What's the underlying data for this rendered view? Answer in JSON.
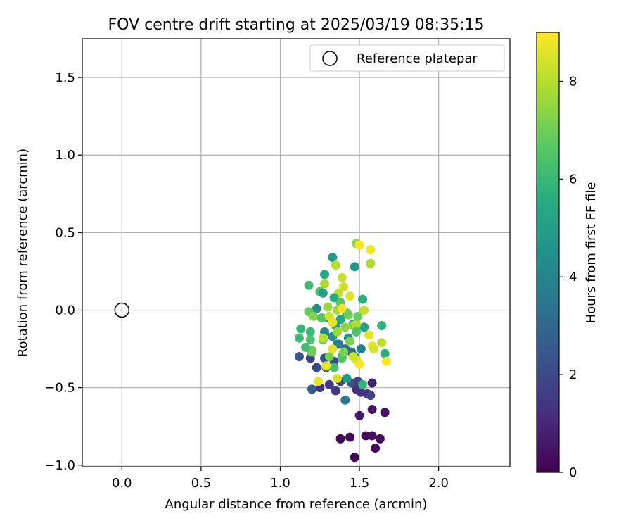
{
  "chart_data": {
    "type": "scatter",
    "title": "FOV centre drift starting at 2025/03/19 08:35:15",
    "xlabel": "Angular distance from reference (arcmin)",
    "ylabel": "Rotation from reference (arcmin)",
    "xlim": [
      -0.25,
      2.45
    ],
    "ylim": [
      -1.01,
      1.75
    ],
    "xticks": [
      0.0,
      0.5,
      1.0,
      1.5,
      2.0
    ],
    "xtick_labels": [
      "0.0",
      "0.5",
      "1.0",
      "1.5",
      "2.0"
    ],
    "yticks": [
      -1.0,
      -0.5,
      0.0,
      0.5,
      1.0,
      1.5
    ],
    "ytick_labels": [
      "−1.0",
      "−0.5",
      "0.0",
      "0.5",
      "1.0",
      "1.5"
    ],
    "grid": true,
    "legend": {
      "position": "top-right",
      "entries": [
        "Reference platepar"
      ]
    },
    "reference_point": {
      "x": 0.0,
      "y": 0.0,
      "marker": "open-circle"
    },
    "colorbar": {
      "label": "Hours from first FF file",
      "range": [
        0,
        9
      ],
      "ticks": [
        0,
        2,
        4,
        6,
        8
      ],
      "tick_labels": [
        "0",
        "2",
        "4",
        "6",
        "8"
      ],
      "colormap": "viridis"
    },
    "points": [
      {
        "x": 1.47,
        "y": -0.95,
        "h": 0.1
      },
      {
        "x": 1.38,
        "y": -0.83,
        "h": 0.2
      },
      {
        "x": 1.44,
        "y": -0.82,
        "h": 0.3
      },
      {
        "x": 1.54,
        "y": -0.81,
        "h": 0.2
      },
      {
        "x": 1.58,
        "y": -0.81,
        "h": 0.4
      },
      {
        "x": 1.63,
        "y": -0.83,
        "h": 0.3
      },
      {
        "x": 1.6,
        "y": -0.89,
        "h": 0.2
      },
      {
        "x": 1.5,
        "y": -0.68,
        "h": 0.6
      },
      {
        "x": 1.58,
        "y": -0.64,
        "h": 0.5
      },
      {
        "x": 1.66,
        "y": -0.66,
        "h": 0.4
      },
      {
        "x": 1.55,
        "y": -0.54,
        "h": 1.0
      },
      {
        "x": 1.58,
        "y": -0.47,
        "h": 0.8
      },
      {
        "x": 1.51,
        "y": -0.53,
        "h": 1.4
      },
      {
        "x": 1.48,
        "y": -0.51,
        "h": 1.1
      },
      {
        "x": 1.57,
        "y": -0.55,
        "h": 1.8
      },
      {
        "x": 1.35,
        "y": -0.52,
        "h": 1.5
      },
      {
        "x": 1.25,
        "y": -0.5,
        "h": 1.3
      },
      {
        "x": 1.31,
        "y": -0.48,
        "h": 1.6
      },
      {
        "x": 1.2,
        "y": -0.51,
        "h": 2.6
      },
      {
        "x": 1.38,
        "y": -0.46,
        "h": 1.9
      },
      {
        "x": 1.45,
        "y": -0.47,
        "h": 2.2
      },
      {
        "x": 1.49,
        "y": -0.46,
        "h": 1.7
      },
      {
        "x": 1.41,
        "y": -0.58,
        "h": 3.6
      },
      {
        "x": 1.42,
        "y": -0.44,
        "h": 4.8
      },
      {
        "x": 1.52,
        "y": -0.48,
        "h": 5.9
      },
      {
        "x": 1.24,
        "y": -0.46,
        "h": 8.7
      },
      {
        "x": 1.36,
        "y": -0.44,
        "h": 8.5
      },
      {
        "x": 1.19,
        "y": -0.31,
        "h": 1.7
      },
      {
        "x": 1.23,
        "y": -0.37,
        "h": 2.0
      },
      {
        "x": 1.28,
        "y": -0.31,
        "h": 2.3
      },
      {
        "x": 1.12,
        "y": -0.3,
        "h": 2.5
      },
      {
        "x": 1.34,
        "y": -0.33,
        "h": 2.1
      },
      {
        "x": 1.29,
        "y": -0.37,
        "h": 3.0
      },
      {
        "x": 1.41,
        "y": -0.25,
        "h": 3.1
      },
      {
        "x": 1.37,
        "y": -0.22,
        "h": 3.4
      },
      {
        "x": 1.45,
        "y": -0.27,
        "h": 3.3
      },
      {
        "x": 1.51,
        "y": -0.25,
        "h": 4.0
      },
      {
        "x": 1.39,
        "y": -0.3,
        "h": 4.2
      },
      {
        "x": 1.47,
        "y": -0.3,
        "h": 4.5
      },
      {
        "x": 1.28,
        "y": -0.14,
        "h": 4.1
      },
      {
        "x": 1.33,
        "y": -0.17,
        "h": 4.4
      },
      {
        "x": 1.36,
        "y": -0.22,
        "h": 3.8
      },
      {
        "x": 1.43,
        "y": -0.18,
        "h": 4.6
      },
      {
        "x": 1.46,
        "y": -0.09,
        "h": 4.9
      },
      {
        "x": 1.35,
        "y": -0.1,
        "h": 5.1
      },
      {
        "x": 1.3,
        "y": -0.05,
        "h": 5.4
      },
      {
        "x": 1.38,
        "y": -0.06,
        "h": 5.3
      },
      {
        "x": 1.42,
        "y": -0.02,
        "h": 5.6
      },
      {
        "x": 1.53,
        "y": -0.11,
        "h": 5.2
      },
      {
        "x": 1.64,
        "y": -0.1,
        "h": 5.8
      },
      {
        "x": 1.66,
        "y": -0.28,
        "h": 5.7
      },
      {
        "x": 1.13,
        "y": -0.12,
        "h": 5.9
      },
      {
        "x": 1.12,
        "y": -0.18,
        "h": 6.1
      },
      {
        "x": 1.19,
        "y": -0.14,
        "h": 6.0
      },
      {
        "x": 1.19,
        "y": -0.19,
        "h": 6.4
      },
      {
        "x": 1.2,
        "y": -0.26,
        "h": 6.7
      },
      {
        "x": 1.27,
        "y": -0.19,
        "h": 6.9
      },
      {
        "x": 1.31,
        "y": -0.3,
        "h": 7.1
      },
      {
        "x": 1.34,
        "y": -0.37,
        "h": 6.3
      },
      {
        "x": 1.39,
        "y": -0.31,
        "h": 6.5
      },
      {
        "x": 1.44,
        "y": -0.2,
        "h": 7.2
      },
      {
        "x": 1.46,
        "y": -0.1,
        "h": 7.5
      },
      {
        "x": 1.48,
        "y": -0.09,
        "h": 7.9
      },
      {
        "x": 1.18,
        "y": 0.16,
        "h": 6.2
      },
      {
        "x": 1.25,
        "y": 0.12,
        "h": 6.3
      },
      {
        "x": 1.28,
        "y": 0.23,
        "h": 5.4
      },
      {
        "x": 1.27,
        "y": 0.11,
        "h": 5.0
      },
      {
        "x": 1.33,
        "y": 0.34,
        "h": 4.8
      },
      {
        "x": 1.47,
        "y": 0.28,
        "h": 4.6
      },
      {
        "x": 1.48,
        "y": 0.43,
        "h": 7.4
      },
      {
        "x": 1.5,
        "y": 0.42,
        "h": 8.9
      },
      {
        "x": 1.57,
        "y": 0.39,
        "h": 8.8
      },
      {
        "x": 1.57,
        "y": 0.3,
        "h": 7.8
      },
      {
        "x": 1.35,
        "y": 0.29,
        "h": 8.0
      },
      {
        "x": 1.39,
        "y": 0.21,
        "h": 8.2
      },
      {
        "x": 1.28,
        "y": 0.17,
        "h": 7.9
      },
      {
        "x": 1.4,
        "y": 0.15,
        "h": 8.3
      },
      {
        "x": 1.37,
        "y": 0.11,
        "h": 8.1
      },
      {
        "x": 1.44,
        "y": 0.09,
        "h": 8.6
      },
      {
        "x": 1.52,
        "y": 0.07,
        "h": 5.7
      },
      {
        "x": 1.34,
        "y": 0.08,
        "h": 5.5
      },
      {
        "x": 1.38,
        "y": 0.05,
        "h": 6.6
      },
      {
        "x": 1.3,
        "y": 0.02,
        "h": 7.6
      },
      {
        "x": 1.23,
        "y": 0.01,
        "h": 4.3
      },
      {
        "x": 1.18,
        "y": -0.01,
        "h": 6.8
      },
      {
        "x": 1.21,
        "y": -0.04,
        "h": 7.3
      },
      {
        "x": 1.26,
        "y": -0.05,
        "h": 6.6
      },
      {
        "x": 1.31,
        "y": -0.04,
        "h": 8.4
      },
      {
        "x": 1.36,
        "y": 0.0,
        "h": 7.7
      },
      {
        "x": 1.39,
        "y": 0.01,
        "h": 8.9
      },
      {
        "x": 1.43,
        "y": -0.03,
        "h": 7.0
      },
      {
        "x": 1.49,
        "y": -0.04,
        "h": 6.9
      },
      {
        "x": 1.53,
        "y": 0.0,
        "h": 8.2
      },
      {
        "x": 1.33,
        "y": -0.08,
        "h": 8.7
      },
      {
        "x": 1.41,
        "y": -0.11,
        "h": 7.4
      },
      {
        "x": 1.48,
        "y": -0.14,
        "h": 6.4
      },
      {
        "x": 1.56,
        "y": -0.16,
        "h": 8.6
      },
      {
        "x": 1.58,
        "y": -0.23,
        "h": 8.8
      },
      {
        "x": 1.59,
        "y": -0.25,
        "h": 8.4
      },
      {
        "x": 1.64,
        "y": -0.21,
        "h": 8.1
      },
      {
        "x": 1.67,
        "y": -0.33,
        "h": 8.9
      },
      {
        "x": 1.48,
        "y": -0.32,
        "h": 8.5
      },
      {
        "x": 1.5,
        "y": -0.35,
        "h": 8.9
      },
      {
        "x": 1.46,
        "y": -0.3,
        "h": 8.3
      },
      {
        "x": 1.4,
        "y": -0.27,
        "h": 7.2
      },
      {
        "x": 1.33,
        "y": -0.25,
        "h": 8.7
      },
      {
        "x": 1.29,
        "y": -0.36,
        "h": 8.6
      },
      {
        "x": 1.27,
        "y": -0.18,
        "h": 8.0
      },
      {
        "x": 1.2,
        "y": -0.27,
        "h": 7.0
      },
      {
        "x": 1.16,
        "y": -0.24,
        "h": 6.2
      },
      {
        "x": 1.36,
        "y": -0.14,
        "h": 7.6
      }
    ]
  }
}
